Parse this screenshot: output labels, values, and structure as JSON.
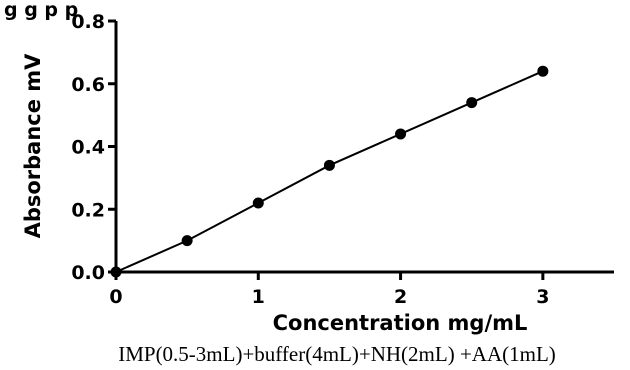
{
  "page_title_fragment": "g                  g  p        p",
  "caption": "IMP(0.5-3mL)+buffer(4mL)+NH(2mL) +AA(1mL)",
  "chart_data": {
    "type": "line",
    "title": "",
    "xlabel": "Concentration mg/mL",
    "ylabel": "Absorbance mV",
    "xlim": [
      0,
      3.5
    ],
    "ylim": [
      0,
      0.8
    ],
    "x_ticks": [
      0,
      1,
      2,
      3
    ],
    "x_tick_labels": [
      "0",
      "1",
      "2",
      "3"
    ],
    "y_ticks": [
      0.0,
      0.2,
      0.4,
      0.6,
      0.8
    ],
    "y_tick_labels": [
      "0.0",
      "0.2",
      "0.4",
      "0.6",
      "0.8"
    ],
    "grid": false,
    "series": [
      {
        "color": "#000000",
        "marker": "circle",
        "x": [
          0,
          0.5,
          1.0,
          1.5,
          2.0,
          2.5,
          3.0
        ],
        "y": [
          0.0,
          0.1,
          0.22,
          0.34,
          0.44,
          0.54,
          0.64
        ]
      }
    ]
  }
}
